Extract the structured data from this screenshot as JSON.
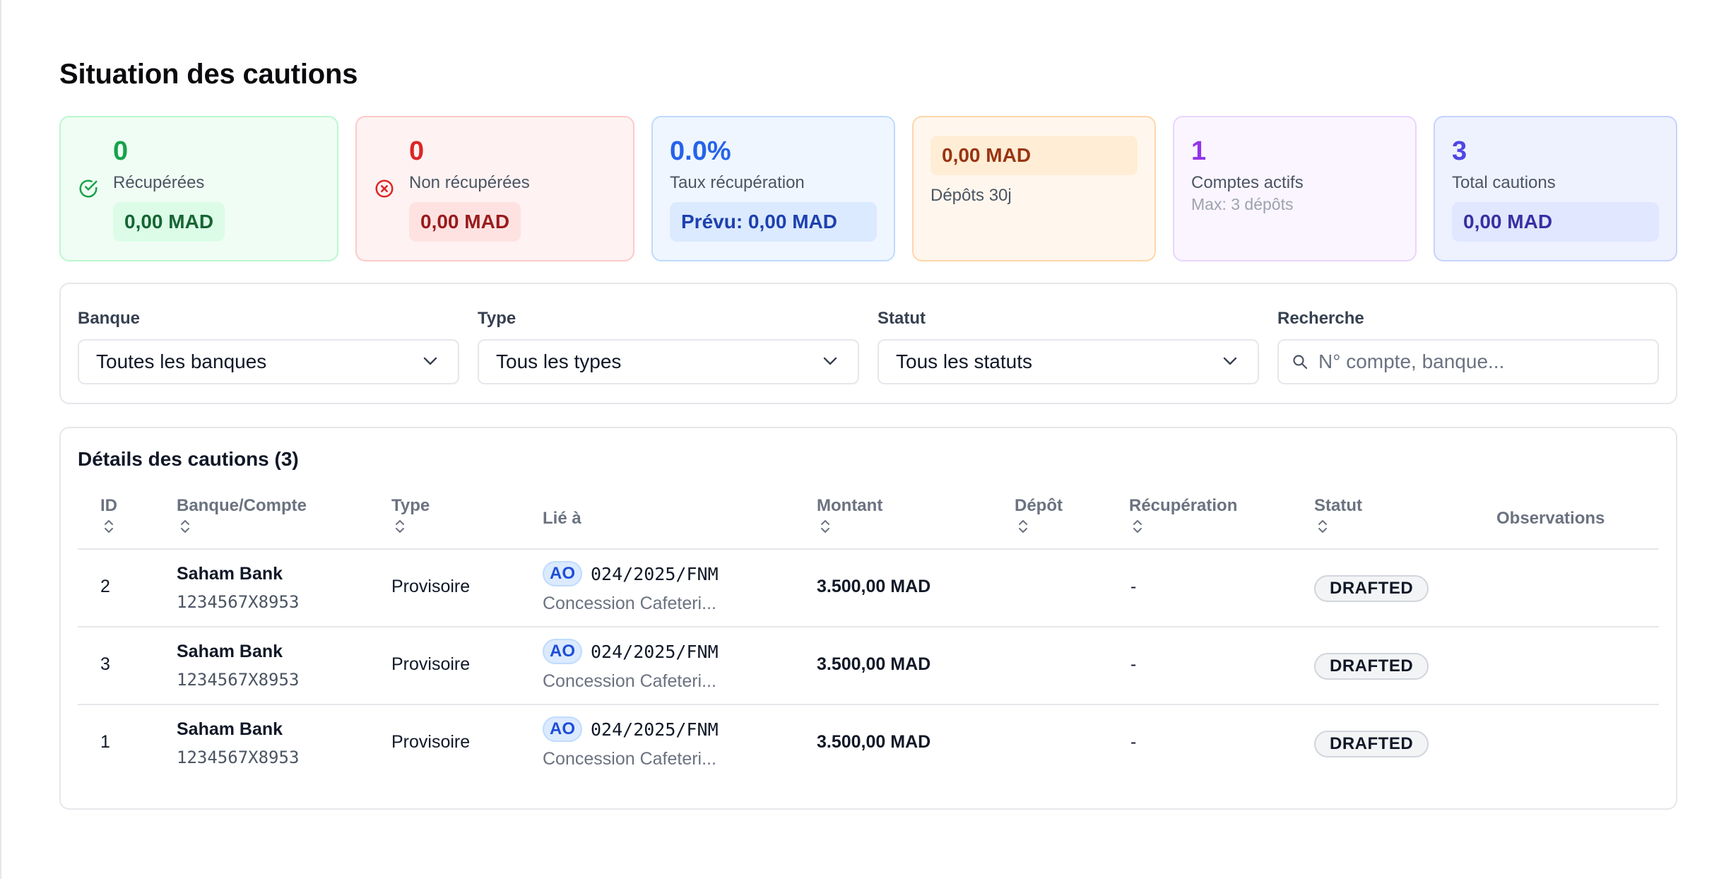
{
  "page": {
    "title": "Situation des cautions"
  },
  "cards": {
    "recuperees": {
      "value": "0",
      "label": "Récupérées",
      "amount": "0,00 MAD",
      "icon": "check-circle-icon",
      "color": "#16a34a"
    },
    "non_recuperees": {
      "value": "0",
      "label": "Non récupérées",
      "amount": "0,00 MAD",
      "icon": "x-circle-icon",
      "color": "#dc2626"
    },
    "taux": {
      "value": "0.0%",
      "label": "Taux récupération",
      "amount": "Prévu: 0,00 MAD",
      "color": "#2563eb"
    },
    "depots": {
      "amount": "0,00 MAD",
      "label": "Dépôts 30j",
      "color": "#9a3412"
    },
    "comptes": {
      "value": "1",
      "label": "Comptes actifs",
      "sub": "Max: 3 dépôts",
      "color": "#9333ea"
    },
    "total": {
      "value": "3",
      "label": "Total cautions",
      "amount": "0,00 MAD",
      "color": "#4f46e5"
    }
  },
  "filters": {
    "banque": {
      "label": "Banque",
      "value": "Toutes les banques"
    },
    "type": {
      "label": "Type",
      "value": "Tous les types"
    },
    "statut": {
      "label": "Statut",
      "value": "Tous les statuts"
    },
    "recherche": {
      "label": "Recherche",
      "placeholder": "N° compte, banque..."
    }
  },
  "table": {
    "title": "Détails des cautions (3)",
    "columns": {
      "id": "ID",
      "banque": "Banque/Compte",
      "type": "Type",
      "lie": "Lié à",
      "montant": "Montant",
      "depot": "Dépôt",
      "recuperation": "Récupération",
      "statut": "Statut",
      "observations": "Observations"
    },
    "rows": [
      {
        "id": "2",
        "bank": "Saham Bank",
        "account": "1234567X8953",
        "type": "Provisoire",
        "badge": "AO",
        "ref": "024/2025/FNM",
        "concession": "Concession Cafeteri...",
        "montant": "3.500,00 MAD",
        "depot": "",
        "recuperation": "-",
        "statut": "DRAFTED",
        "observations": ""
      },
      {
        "id": "3",
        "bank": "Saham Bank",
        "account": "1234567X8953",
        "type": "Provisoire",
        "badge": "AO",
        "ref": "024/2025/FNM",
        "concession": "Concession Cafeteri...",
        "montant": "3.500,00 MAD",
        "depot": "",
        "recuperation": "-",
        "statut": "DRAFTED",
        "observations": ""
      },
      {
        "id": "1",
        "bank": "Saham Bank",
        "account": "1234567X8953",
        "type": "Provisoire",
        "badge": "AO",
        "ref": "024/2025/FNM",
        "concession": "Concession Cafeteri...",
        "montant": "3.500,00 MAD",
        "depot": "",
        "recuperation": "-",
        "statut": "DRAFTED",
        "observations": ""
      }
    ]
  }
}
